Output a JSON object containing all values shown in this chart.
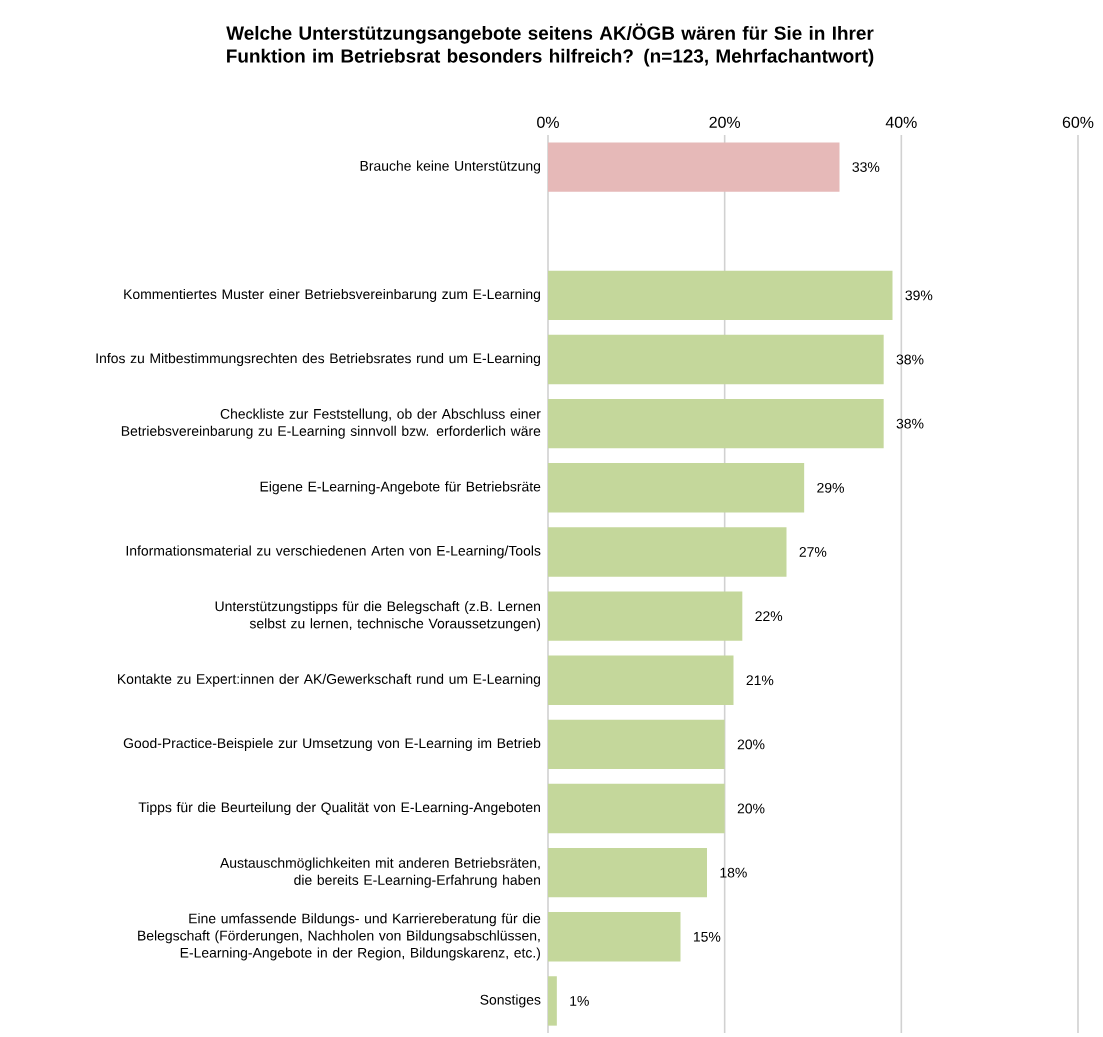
{
  "chart_data": {
    "type": "bar",
    "orientation": "horizontal",
    "title": "Welche Unterstützungsangebote seitens AK/ÖGB wären für Sie in Ihrer Funktion im Betriebsrat besonders hilfreich? (n=123, Mehrfachantwort)",
    "categories": [
      "Brauche keine Unterstützung",
      null,
      "Kommentiertes Muster einer Betriebsvereinbarung zum E-Learning",
      "Infos zu Mitbestimmungsrechten des Betriebsrates rund um E-Learning",
      "Checkliste zur Feststellung, ob der Abschluss einer Betriebsvereinbarung zu E-Learning sinnvoll bzw. erforderlich wäre",
      "Eigene E-Learning-Angebote für Betriebsräte",
      "Informationsmaterial zu verschiedenen Arten von E-Learning/Tools",
      "Unterstützungstipps für die Belegschaft (z.B. Lernen selbst zu lernen, technische Voraussetzungen)",
      "Kontakte zu Expert:innen der AK/Gewerkschaft rund um E-Learning",
      "Good-Practice-Beispiele zur Umsetzung von E-Learning im Betrieb",
      "Tipps für die Beurteilung der Qualität von E-Learning-Angeboten",
      "Austauschmöglichkeiten mit anderen Betriebsräten, die bereits E-Learning-Erfahrung haben",
      "Eine umfassende Bildungs- und Karriereberatung für die Belegschaft (Förderungen, Nachholen von Bildungsabschlüssen, E-Learning-Angebote in der Region, Bildungskarenz, etc.)",
      "Sonstiges"
    ],
    "values": [
      33,
      null,
      39,
      38,
      38,
      29,
      27,
      22,
      21,
      20,
      20,
      18,
      15,
      1
    ],
    "value_labels": [
      "33%",
      null,
      "39%",
      "38%",
      "38%",
      "29%",
      "27%",
      "22%",
      "21%",
      "20%",
      "20%",
      "18%",
      "15%",
      "1%"
    ],
    "colors": [
      "#e6b9b8",
      null,
      "#c4d79b",
      "#c4d79b",
      "#c4d79b",
      "#c4d79b",
      "#c4d79b",
      "#c4d79b",
      "#c4d79b",
      "#c4d79b",
      "#c4d79b",
      "#c4d79b",
      "#c4d79b",
      "#c4d79b"
    ],
    "xlim": [
      0,
      60
    ],
    "xticks": [
      {
        "value": 0,
        "label": "0%"
      },
      {
        "value": 20,
        "label": "20%"
      },
      {
        "value": 40,
        "label": "40%"
      },
      {
        "value": 60,
        "label": "60%"
      }
    ],
    "grid": "x"
  }
}
